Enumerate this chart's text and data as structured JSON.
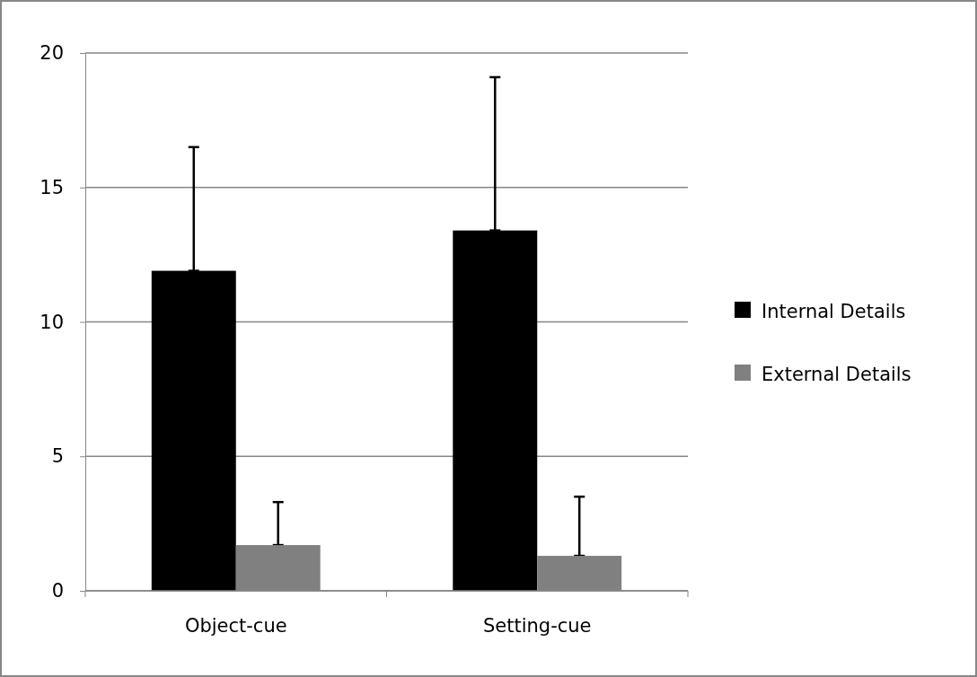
{
  "chart_data": {
    "type": "bar",
    "categories": [
      "Object-cue",
      "Setting-cue"
    ],
    "series": [
      {
        "name": "Internal Details",
        "color": "#000000",
        "values": [
          11.9,
          13.4
        ],
        "errors": [
          [
            11.9,
            16.5
          ],
          [
            13.4,
            19.1
          ]
        ]
      },
      {
        "name": "External Details",
        "color": "#808080",
        "values": [
          1.7,
          1.3
        ],
        "errors": [
          [
            1.7,
            3.3
          ],
          [
            1.3,
            3.5
          ]
        ]
      }
    ],
    "ylim": [
      0,
      20
    ],
    "yticks": [
      0,
      5,
      10,
      15,
      20
    ],
    "grid": "y",
    "legend": "right"
  }
}
